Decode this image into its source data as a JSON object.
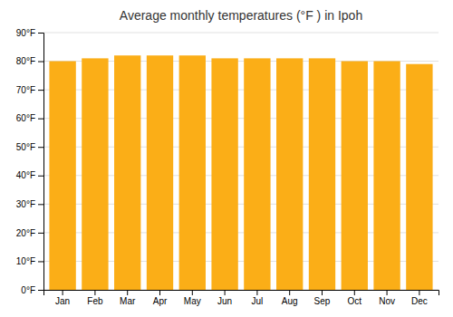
{
  "chart_data": {
    "type": "bar",
    "title": "Average monthly temperatures (°F ) in Ipoh",
    "categories": [
      "Jan",
      "Feb",
      "Mar",
      "Apr",
      "May",
      "Jun",
      "Jul",
      "Aug",
      "Sep",
      "Oct",
      "Nov",
      "Dec"
    ],
    "values": [
      80,
      81,
      82,
      82,
      82,
      81,
      81,
      81,
      81,
      80,
      80,
      79
    ],
    "color": "#FBAE17",
    "ylim": [
      0,
      90
    ],
    "yticks": [
      {
        "value": 0,
        "label": "0°F"
      },
      {
        "value": 10,
        "label": "10°F"
      },
      {
        "value": 20,
        "label": "20°F"
      },
      {
        "value": 30,
        "label": "30°F"
      },
      {
        "value": 40,
        "label": "40°F"
      },
      {
        "value": 50,
        "label": "50°F"
      },
      {
        "value": 60,
        "label": "60°F"
      },
      {
        "value": 70,
        "label": "70°F"
      },
      {
        "value": 80,
        "label": "80°F"
      },
      {
        "value": 90,
        "label": "90°F"
      }
    ],
    "grid": true
  }
}
